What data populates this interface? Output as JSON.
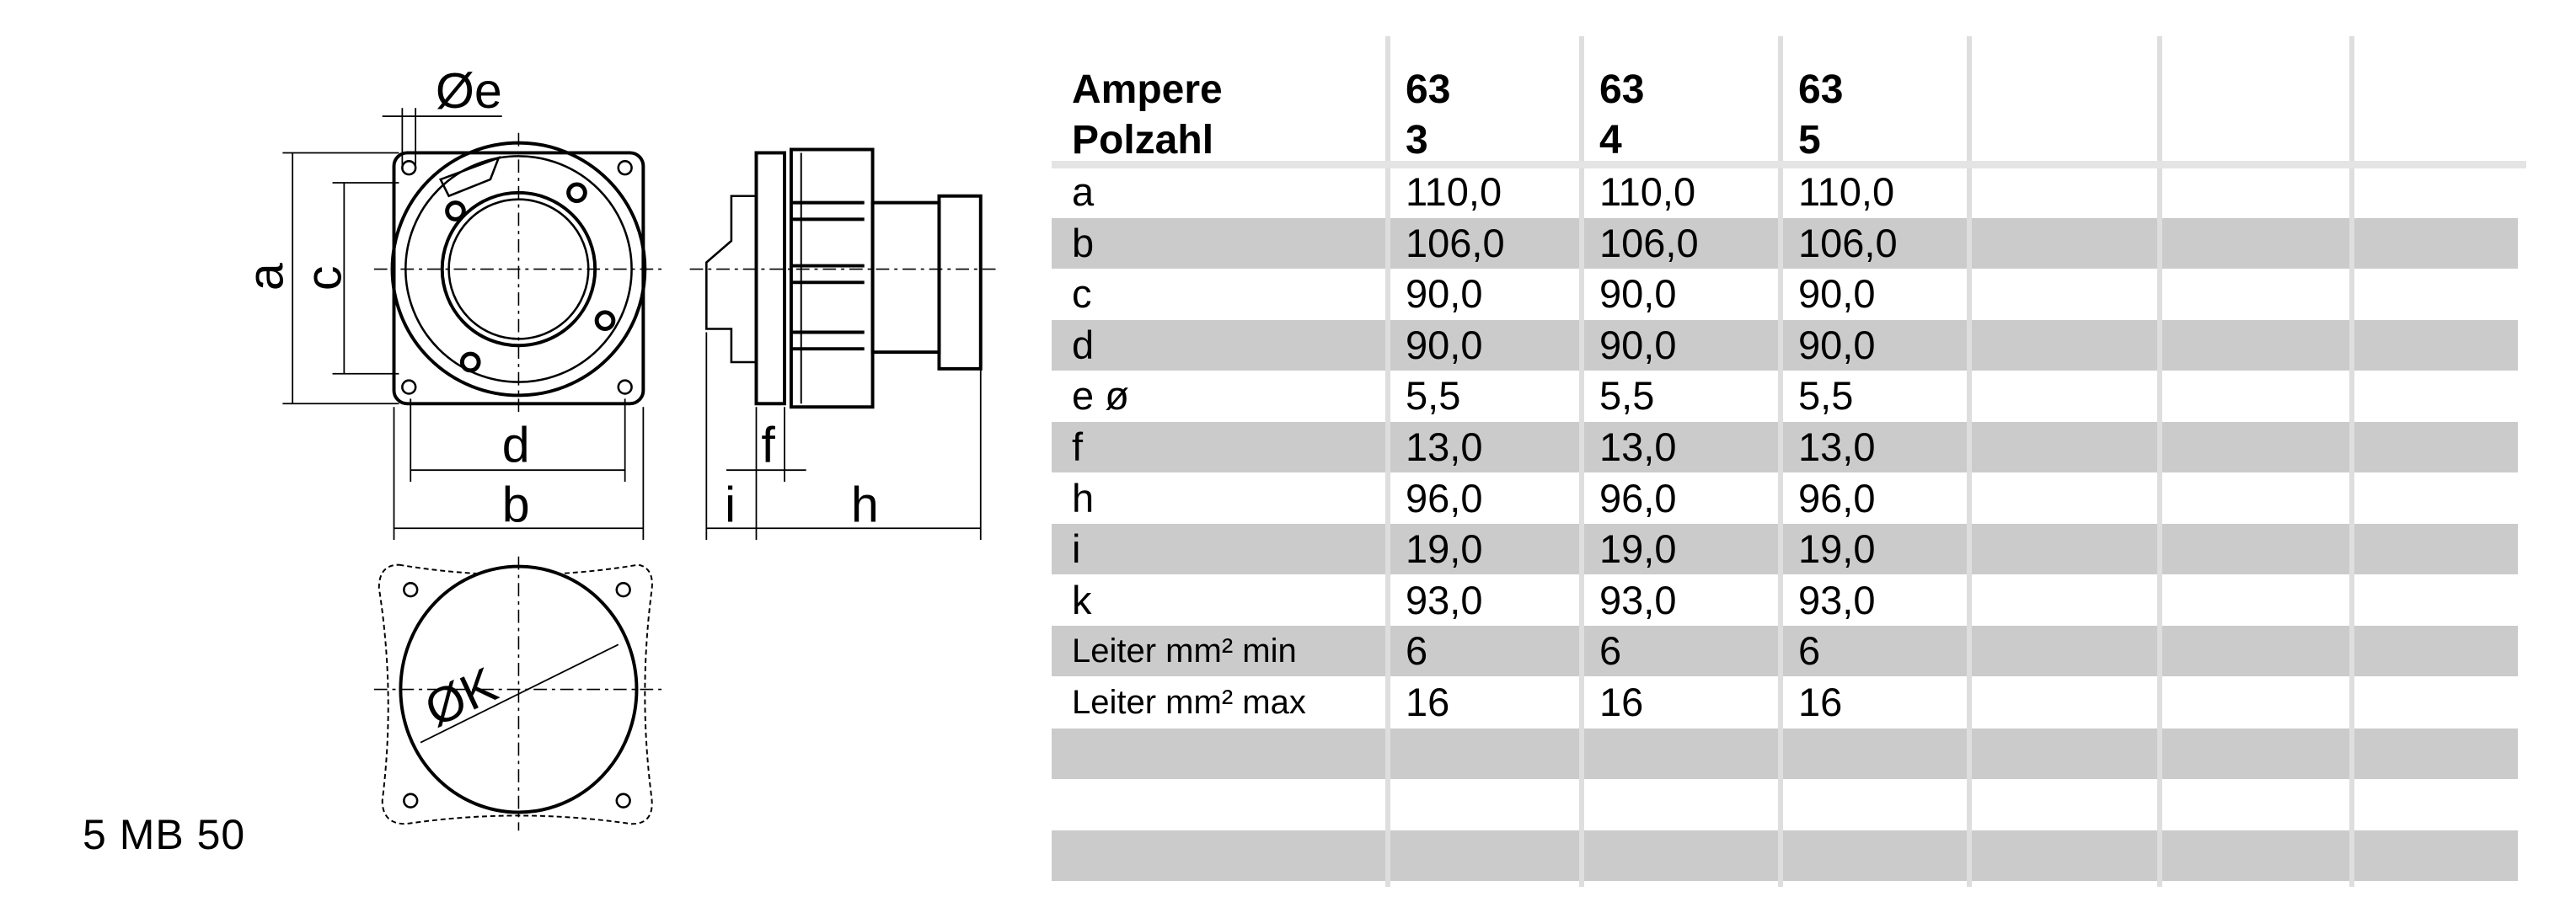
{
  "drawing": {
    "labels": {
      "e": "Øe",
      "a": "a",
      "c": "c",
      "d": "d",
      "b": "b",
      "f": "f",
      "i": "i",
      "h": "h",
      "k": "ØK"
    }
  },
  "model": "5 MB 50",
  "table": {
    "header": {
      "label_line1": "Ampere",
      "label_line2": "Polzahl",
      "columns": [
        {
          "ampere": "63",
          "poles": "3"
        },
        {
          "ampere": "63",
          "poles": "4"
        },
        {
          "ampere": "63",
          "poles": "5"
        }
      ]
    },
    "rows": [
      {
        "label": "a",
        "values": [
          "110,0",
          "110,0",
          "110,0"
        ]
      },
      {
        "label": "b",
        "values": [
          "106,0",
          "106,0",
          "106,0"
        ]
      },
      {
        "label": "c",
        "values": [
          "90,0",
          "90,0",
          "90,0"
        ]
      },
      {
        "label": "d",
        "values": [
          "90,0",
          "90,0",
          "90,0"
        ]
      },
      {
        "label": "e ø",
        "values": [
          "5,5",
          "5,5",
          "5,5"
        ]
      },
      {
        "label": "f",
        "values": [
          "13,0",
          "13,0",
          "13,0"
        ]
      },
      {
        "label": "h",
        "values": [
          "96,0",
          "96,0",
          "96,0"
        ]
      },
      {
        "label": "i",
        "values": [
          "19,0",
          "19,0",
          "19,0"
        ]
      },
      {
        "label": "k",
        "values": [
          "93,0",
          "93,0",
          "93,0"
        ]
      },
      {
        "label": "Leiter mm² min",
        "values": [
          "6",
          "6",
          "6"
        ]
      },
      {
        "label": "Leiter mm² max",
        "values": [
          "16",
          "16",
          "16"
        ]
      },
      {
        "label": "",
        "values": [
          "",
          "",
          ""
        ]
      },
      {
        "label": "",
        "values": [
          "",
          "",
          ""
        ]
      },
      {
        "label": "",
        "values": [
          "",
          "",
          ""
        ]
      }
    ],
    "colors": {
      "stripe": "#cbcbcb",
      "grid": "#dedede"
    }
  }
}
